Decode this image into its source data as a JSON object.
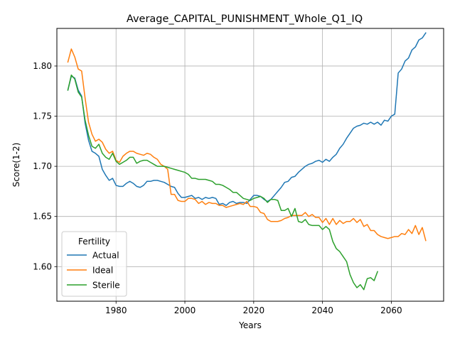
{
  "chart_data": {
    "type": "line",
    "title": "Average_CAPITAL_PUNISHMENT_Whole_Q1_IQ",
    "xlabel": "Years",
    "ylabel": "Score(1-2)",
    "xlim": [
      1962.8,
      2075.2
    ],
    "ylim": [
      1.5655,
      1.8375
    ],
    "xticks": [
      1980,
      2000,
      2020,
      2040,
      2060
    ],
    "yticks": [
      1.6,
      1.65,
      1.7,
      1.75,
      1.8
    ],
    "xtick_labels": [
      "1980",
      "2000",
      "2020",
      "2040",
      "2060"
    ],
    "ytick_labels": [
      "1.60",
      "1.65",
      "1.70",
      "1.75",
      "1.80"
    ],
    "grid": true,
    "legend": {
      "title": "Fertility",
      "position": "lower-left"
    },
    "series": [
      {
        "name": "Actual",
        "color": "#1f77b4",
        "x": [
          1966,
          1967,
          1968,
          1969,
          1970,
          1971,
          1972,
          1973,
          1974,
          1975,
          1976,
          1977,
          1978,
          1979,
          1980,
          1981,
          1982,
          1983,
          1984,
          1985,
          1986,
          1987,
          1988,
          1989,
          1990,
          1991,
          1992,
          1993,
          1994,
          1995,
          1996,
          1997,
          1998,
          1999,
          2000,
          2001,
          2002,
          2003,
          2004,
          2005,
          2006,
          2007,
          2008,
          2009,
          2010,
          2011,
          2012,
          2013,
          2014,
          2015,
          2016,
          2017,
          2018,
          2019,
          2020,
          2021,
          2022,
          2023,
          2024,
          2025,
          2026,
          2027,
          2028,
          2029,
          2030,
          2031,
          2032,
          2033,
          2034,
          2035,
          2036,
          2037,
          2038,
          2039,
          2040,
          2041,
          2042,
          2043,
          2044,
          2045,
          2046,
          2047,
          2048,
          2049,
          2050,
          2051,
          2052,
          2053,
          2054,
          2055,
          2056,
          2057,
          2058,
          2059,
          2060,
          2061,
          2062,
          2063,
          2064,
          2065,
          2066,
          2067,
          2068,
          2069,
          2070
        ],
        "values": [
          1.776,
          1.79,
          1.788,
          1.776,
          1.77,
          1.743,
          1.726,
          1.715,
          1.713,
          1.71,
          1.697,
          1.691,
          1.686,
          1.688,
          1.681,
          1.68,
          1.68,
          1.683,
          1.685,
          1.683,
          1.68,
          1.679,
          1.681,
          1.685,
          1.685,
          1.686,
          1.686,
          1.685,
          1.684,
          1.682,
          1.68,
          1.679,
          1.673,
          1.669,
          1.669,
          1.67,
          1.671,
          1.668,
          1.669,
          1.667,
          1.669,
          1.668,
          1.669,
          1.668,
          1.662,
          1.663,
          1.661,
          1.664,
          1.665,
          1.663,
          1.664,
          1.664,
          1.663,
          1.667,
          1.671,
          1.671,
          1.67,
          1.667,
          1.665,
          1.667,
          1.671,
          1.675,
          1.679,
          1.684,
          1.685,
          1.689,
          1.69,
          1.694,
          1.697,
          1.7,
          1.702,
          1.703,
          1.705,
          1.706,
          1.704,
          1.707,
          1.705,
          1.709,
          1.712,
          1.718,
          1.722,
          1.728,
          1.733,
          1.738,
          1.74,
          1.741,
          1.743,
          1.742,
          1.744,
          1.742,
          1.744,
          1.741,
          1.746,
          1.745,
          1.75,
          1.752,
          1.793,
          1.797,
          1.805,
          1.808,
          1.816,
          1.819,
          1.826,
          1.828,
          1.833
        ]
      },
      {
        "name": "Ideal",
        "color": "#ff7f0e",
        "x": [
          1966,
          1967,
          1968,
          1969,
          1970,
          1971,
          1972,
          1973,
          1974,
          1975,
          1976,
          1977,
          1978,
          1979,
          1980,
          1981,
          1982,
          1983,
          1984,
          1985,
          1986,
          1987,
          1988,
          1989,
          1990,
          1991,
          1992,
          1993,
          1994,
          1995,
          1996,
          1997,
          1998,
          1999,
          2000,
          2001,
          2002,
          2003,
          2004,
          2005,
          2006,
          2007,
          2008,
          2009,
          2010,
          2011,
          2012,
          2013,
          2014,
          2015,
          2016,
          2017,
          2018,
          2019,
          2020,
          2021,
          2022,
          2023,
          2024,
          2025,
          2026,
          2027,
          2028,
          2029,
          2030,
          2031,
          2032,
          2033,
          2034,
          2035,
          2036,
          2037,
          2038,
          2039,
          2040,
          2041,
          2042,
          2043,
          2044,
          2045,
          2046,
          2047,
          2048,
          2049,
          2050,
          2051,
          2052,
          2053,
          2054,
          2055,
          2056,
          2057,
          2058,
          2059,
          2060,
          2061,
          2062,
          2063,
          2064,
          2065,
          2066,
          2067,
          2068,
          2069,
          2070
        ],
        "values": [
          1.804,
          1.817,
          1.809,
          1.797,
          1.795,
          1.768,
          1.744,
          1.732,
          1.725,
          1.727,
          1.724,
          1.717,
          1.713,
          1.715,
          1.706,
          1.704,
          1.71,
          1.713,
          1.715,
          1.715,
          1.713,
          1.712,
          1.711,
          1.713,
          1.712,
          1.709,
          1.707,
          1.702,
          1.7,
          1.697,
          1.672,
          1.672,
          1.666,
          1.665,
          1.665,
          1.668,
          1.668,
          1.667,
          1.663,
          1.665,
          1.662,
          1.664,
          1.663,
          1.663,
          1.661,
          1.661,
          1.659,
          1.66,
          1.661,
          1.662,
          1.663,
          1.662,
          1.665,
          1.66,
          1.66,
          1.659,
          1.654,
          1.653,
          1.647,
          1.645,
          1.645,
          1.645,
          1.646,
          1.648,
          1.649,
          1.651,
          1.651,
          1.651,
          1.651,
          1.654,
          1.65,
          1.652,
          1.649,
          1.649,
          1.644,
          1.648,
          1.642,
          1.648,
          1.642,
          1.646,
          1.643,
          1.645,
          1.645,
          1.648,
          1.644,
          1.647,
          1.64,
          1.642,
          1.636,
          1.636,
          1.632,
          1.63,
          1.629,
          1.628,
          1.629,
          1.63,
          1.63,
          1.633,
          1.632,
          1.637,
          1.633,
          1.641,
          1.632,
          1.639,
          1.626
        ]
      },
      {
        "name": "Sterile",
        "color": "#2ca02c",
        "x": [
          1966,
          1967,
          1968,
          1969,
          1970,
          1971,
          1972,
          1973,
          1974,
          1975,
          1976,
          1977,
          1978,
          1979,
          1980,
          1981,
          1982,
          1983,
          1984,
          1985,
          1986,
          1987,
          1988,
          1989,
          1990,
          1991,
          1992,
          1993,
          1994,
          1995,
          1996,
          1997,
          1998,
          1999,
          2000,
          2001,
          2002,
          2003,
          2004,
          2005,
          2006,
          2007,
          2008,
          2009,
          2010,
          2011,
          2012,
          2013,
          2014,
          2015,
          2016,
          2017,
          2018,
          2019,
          2020,
          2021,
          2022,
          2023,
          2024,
          2025,
          2026,
          2027,
          2028,
          2029,
          2030,
          2031,
          2032,
          2033,
          2034,
          2035,
          2036,
          2037,
          2038,
          2039,
          2040,
          2041,
          2042,
          2043,
          2044,
          2045,
          2046,
          2047,
          2048,
          2049,
          2050,
          2051,
          2052,
          2053,
          2054,
          2055,
          2056
        ],
        "values": [
          1.776,
          1.791,
          1.787,
          1.774,
          1.769,
          1.746,
          1.731,
          1.72,
          1.718,
          1.722,
          1.713,
          1.709,
          1.707,
          1.713,
          1.705,
          1.702,
          1.704,
          1.706,
          1.709,
          1.709,
          1.703,
          1.705,
          1.706,
          1.706,
          1.704,
          1.702,
          1.7,
          1.7,
          1.7,
          1.699,
          1.698,
          1.697,
          1.696,
          1.695,
          1.694,
          1.692,
          1.688,
          1.688,
          1.687,
          1.687,
          1.687,
          1.686,
          1.685,
          1.682,
          1.682,
          1.681,
          1.679,
          1.677,
          1.674,
          1.674,
          1.671,
          1.668,
          1.667,
          1.666,
          1.668,
          1.669,
          1.67,
          1.668,
          1.664,
          1.667,
          1.667,
          1.666,
          1.656,
          1.656,
          1.658,
          1.65,
          1.658,
          1.645,
          1.644,
          1.647,
          1.642,
          1.641,
          1.641,
          1.641,
          1.637,
          1.64,
          1.637,
          1.625,
          1.618,
          1.615,
          1.61,
          1.605,
          1.592,
          1.584,
          1.579,
          1.582,
          1.577,
          1.588,
          1.589,
          1.586,
          1.595
        ]
      }
    ]
  }
}
